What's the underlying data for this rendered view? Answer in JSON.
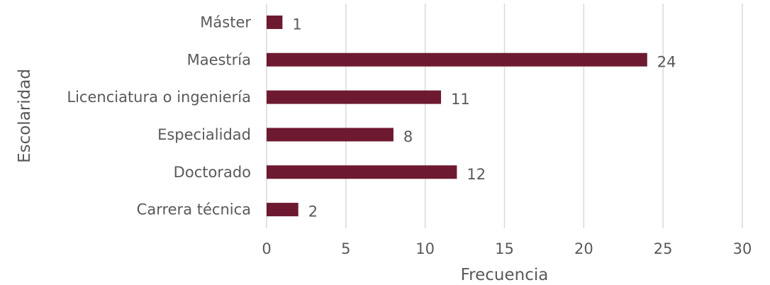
{
  "chart_data": {
    "type": "bar",
    "orientation": "horizontal",
    "categories": [
      "Máster",
      "Maestría",
      "Licenciatura o ingeniería",
      "Especialidad",
      "Doctorado",
      "Carrera técnica"
    ],
    "values": [
      1,
      24,
      11,
      8,
      12,
      2
    ],
    "xlabel": "Frecuencia",
    "ylabel": "Escolaridad",
    "xlim": [
      0,
      30
    ],
    "xticks": [
      0,
      5,
      10,
      15,
      20,
      25,
      30
    ],
    "grid": "vertical",
    "legend": "none",
    "data_labels": true,
    "bar_color": "#6d1a31"
  }
}
